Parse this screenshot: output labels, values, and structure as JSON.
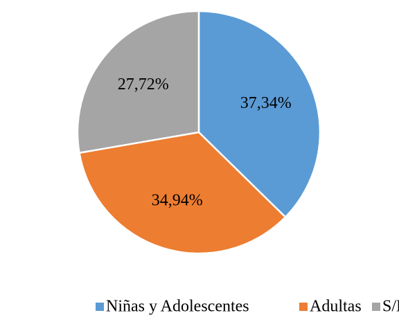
{
  "chart_data": {
    "type": "pie",
    "categories": [
      "Niñas y Adolescentes",
      "Adultas",
      "S/D"
    ],
    "values": [
      37.34,
      34.94,
      27.72
    ],
    "value_labels": [
      "37,34%",
      "34,94%",
      "27,72%"
    ],
    "colors": [
      "#5b9bd5",
      "#ed7d31",
      "#a5a5a5"
    ],
    "legend": "bottom"
  }
}
